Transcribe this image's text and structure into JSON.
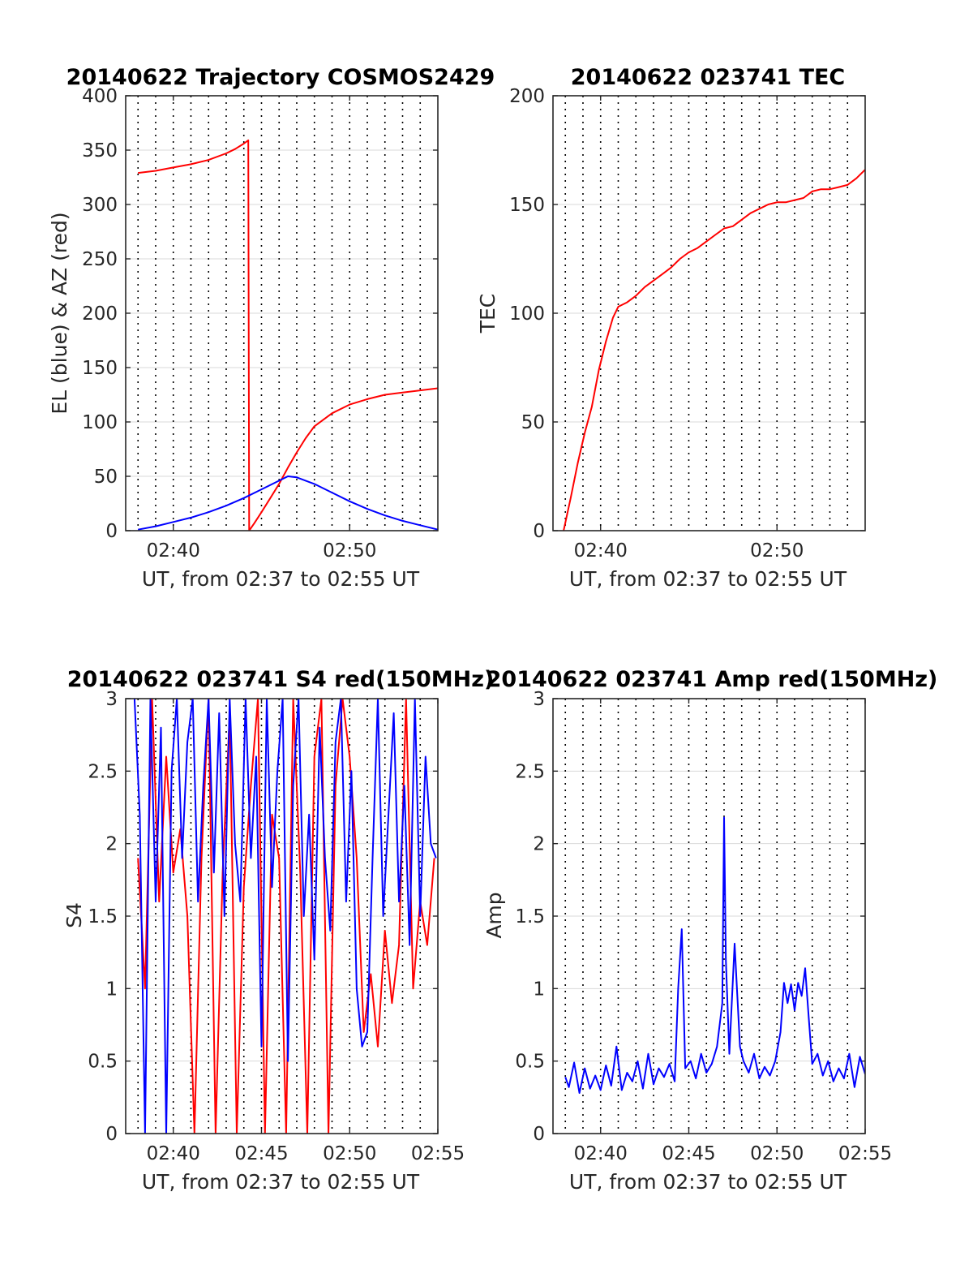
{
  "colors": {
    "red": "#ff0000",
    "blue": "#0000ff"
  },
  "chart_data": [
    {
      "id": "trajectory",
      "type": "line",
      "title": "20140622 Trajectory COSMOS2429",
      "xlabel": "UT, from 02:37 to 02:55 UT",
      "ylabel": "EL (blue) & AZ (red)",
      "xlim": [
        37.3,
        55
      ],
      "ylim": [
        0,
        400
      ],
      "yticks": [
        0,
        50,
        100,
        150,
        200,
        250,
        300,
        350,
        400
      ],
      "ytick_labels": [
        "0",
        "50",
        "100",
        "150",
        "200",
        "250",
        "300",
        "350",
        "400"
      ],
      "xticks": [
        40,
        50
      ],
      "xtick_labels": [
        "02:40",
        "02:50"
      ],
      "vgrid_x": [
        38,
        39,
        40,
        41,
        42,
        43,
        44,
        45,
        46,
        47,
        48,
        49,
        50,
        51,
        52,
        53,
        54
      ],
      "grid": true,
      "series": [
        {
          "color": "red",
          "x": [
            38,
            39,
            40,
            41,
            42,
            43,
            43.5,
            44,
            44.25,
            44.3,
            44.6,
            45,
            45.5,
            46,
            46.5,
            47,
            47.5,
            48,
            49,
            50,
            51,
            52,
            53,
            54,
            55
          ],
          "y": [
            329,
            331,
            334,
            337,
            341,
            347,
            351,
            356,
            359,
            0,
            7,
            17,
            30,
            43,
            58,
            72,
            85,
            96,
            108,
            116,
            121,
            125,
            127,
            129,
            131
          ]
        },
        {
          "color": "blue",
          "x": [
            38,
            39,
            40,
            41,
            42,
            43,
            44,
            45,
            46,
            46.5,
            47,
            48,
            49,
            50,
            51,
            52,
            53,
            54,
            55
          ],
          "y": [
            1,
            4,
            8,
            12,
            17,
            23,
            30,
            38,
            46,
            50,
            49,
            43,
            35,
            27,
            20,
            14,
            9,
            5,
            1
          ]
        }
      ]
    },
    {
      "id": "tec",
      "type": "line",
      "title": "20140622 023741 TEC",
      "xlabel": "UT, from 02:37 to 02:55 UT",
      "ylabel": "TEC",
      "xlim": [
        37.3,
        55
      ],
      "ylim": [
        0,
        200
      ],
      "yticks": [
        0,
        50,
        100,
        150,
        200
      ],
      "ytick_labels": [
        "0",
        "50",
        "100",
        "150",
        "200"
      ],
      "xticks": [
        40,
        50
      ],
      "xtick_labels": [
        "02:40",
        "02:50"
      ],
      "vgrid_x": [
        38,
        39,
        40,
        41,
        42,
        43,
        44,
        45,
        46,
        47,
        48,
        49,
        50,
        51,
        52,
        53,
        54
      ],
      "grid": true,
      "series": [
        {
          "color": "red",
          "x": [
            37.9,
            38.3,
            38.7,
            39.1,
            39.5,
            39.9,
            40.3,
            40.7,
            41.0,
            41.5,
            42,
            42.5,
            43,
            43.5,
            44,
            44.5,
            45,
            45.5,
            46,
            46.5,
            47,
            47.5,
            48,
            48.5,
            49,
            49.5,
            50,
            50.5,
            51,
            51.5,
            52,
            52.5,
            53,
            53.5,
            54,
            54.5,
            55
          ],
          "y": [
            0,
            15,
            31,
            45,
            57,
            74,
            87,
            98,
            103,
            105,
            108,
            112,
            115,
            118,
            121,
            125,
            128,
            130,
            133,
            136,
            139,
            140,
            143,
            146,
            148,
            150,
            151,
            151,
            152,
            153,
            156,
            157,
            157,
            158,
            159,
            162,
            166
          ]
        }
      ]
    },
    {
      "id": "s4",
      "type": "line",
      "title": "20140622 023741 S4 red(150MHz)",
      "xlabel": "UT, from 02:37 to 02:55 UT",
      "ylabel": "S4",
      "xlim": [
        37.3,
        55
      ],
      "ylim": [
        0,
        3
      ],
      "yticks": [
        0,
        0.5,
        1,
        1.5,
        2,
        2.5,
        3
      ],
      "ytick_labels": [
        "0",
        "0.5",
        "1",
        "1.5",
        "2",
        "2.5",
        "3"
      ],
      "xticks": [
        40,
        45,
        50,
        55
      ],
      "xtick_labels": [
        "02:40",
        "02:45",
        "02:50",
        "02:55"
      ],
      "vgrid_x": [
        38,
        39,
        40,
        41,
        42,
        43,
        44,
        45,
        46,
        47,
        48,
        49,
        50,
        51,
        52,
        53,
        54
      ],
      "grid": true,
      "series": [
        {
          "color": "red",
          "x": [
            38.0,
            38.4,
            38.8,
            39.2,
            39.6,
            40.0,
            40.4,
            40.8,
            41.2,
            41.6,
            42.0,
            42.4,
            42.8,
            43.2,
            43.6,
            44.0,
            44.4,
            44.8,
            45.2,
            45.6,
            46.0,
            46.4,
            46.8,
            47.2,
            47.6,
            48.0,
            48.4,
            48.8,
            49.2,
            49.6,
            50.0,
            50.4,
            50.8,
            51.2,
            51.6,
            52.0,
            52.4,
            52.8,
            53.2,
            53.6,
            54.0,
            54.4,
            54.8
          ],
          "y": [
            1.9,
            1.0,
            3.0,
            1.6,
            2.6,
            1.8,
            2.1,
            1.5,
            0,
            1.9,
            3.0,
            0,
            1.8,
            2.9,
            0,
            1.7,
            2.4,
            3.0,
            0,
            2.2,
            1.9,
            0,
            3.0,
            1.8,
            0,
            2.6,
            3.0,
            0,
            2.4,
            3.0,
            2.6,
            1.9,
            0.7,
            1.1,
            0.6,
            1.4,
            0.9,
            1.3,
            3.0,
            1.0,
            1.6,
            1.3,
            1.9
          ]
        },
        {
          "color": "blue",
          "x": [
            37.8,
            38.1,
            38.4,
            38.7,
            39.0,
            39.3,
            39.6,
            39.9,
            40.2,
            40.5,
            40.8,
            41.1,
            41.4,
            41.7,
            42.0,
            42.3,
            42.6,
            42.9,
            43.2,
            43.5,
            43.8,
            44.1,
            44.4,
            44.7,
            45.0,
            45.3,
            45.6,
            45.9,
            46.2,
            46.5,
            46.8,
            47.1,
            47.4,
            47.7,
            48.0,
            48.3,
            48.6,
            48.9,
            49.2,
            49.5,
            49.8,
            50.1,
            50.4,
            50.7,
            51.0,
            51.3,
            51.6,
            51.9,
            52.2,
            52.5,
            52.8,
            53.1,
            53.4,
            53.7,
            54.0,
            54.3,
            54.6,
            54.9
          ],
          "y": [
            3.0,
            2.2,
            0,
            3.0,
            1.6,
            2.8,
            0,
            2.5,
            3.0,
            1.9,
            2.7,
            3.0,
            1.6,
            2.4,
            3.0,
            1.8,
            2.9,
            1.5,
            3.0,
            2.0,
            1.6,
            3.0,
            1.9,
            2.6,
            0.6,
            3.0,
            1.7,
            2.5,
            3.0,
            0.5,
            2.4,
            3.0,
            1.5,
            2.2,
            1.2,
            2.8,
            1.9,
            1.4,
            2.7,
            3.0,
            1.6,
            2.5,
            1.0,
            0.6,
            0.7,
            1.9,
            3.0,
            1.5,
            2.2,
            2.9,
            1.6,
            2.4,
            1.3,
            3.0,
            1.5,
            2.6,
            2.0,
            1.9
          ]
        }
      ]
    },
    {
      "id": "amp",
      "type": "line",
      "title": "20140622 023741 Amp red(150MHz)",
      "xlabel": "UT, from 02:37 to 02:55 UT",
      "ylabel": "Amp",
      "xlim": [
        37.3,
        55
      ],
      "ylim": [
        0,
        3
      ],
      "yticks": [
        0,
        0.5,
        1,
        1.5,
        2,
        2.5,
        3
      ],
      "ytick_labels": [
        "0",
        "0.5",
        "1",
        "1.5",
        "2",
        "2.5",
        "3"
      ],
      "xticks": [
        40,
        45,
        50,
        55
      ],
      "xtick_labels": [
        "02:40",
        "02:45",
        "02:50",
        "02:55"
      ],
      "vgrid_x": [
        38,
        39,
        40,
        41,
        42,
        43,
        44,
        45,
        46,
        47,
        48,
        49,
        50,
        51,
        52,
        53,
        54
      ],
      "grid": true,
      "series": [
        {
          "color": "blue",
          "x": [
            38.0,
            38.2,
            38.5,
            38.8,
            39.1,
            39.4,
            39.7,
            40.0,
            40.3,
            40.6,
            40.9,
            41.2,
            41.5,
            41.8,
            42.1,
            42.4,
            42.7,
            43.0,
            43.3,
            43.6,
            43.9,
            44.2,
            44.4,
            44.6,
            44.8,
            45.1,
            45.4,
            45.7,
            46.0,
            46.3,
            46.6,
            46.9,
            47.0,
            47.1,
            47.3,
            47.6,
            47.9,
            48.1,
            48.4,
            48.7,
            49.0,
            49.3,
            49.6,
            49.9,
            50.2,
            50.4,
            50.6,
            50.8,
            51.0,
            51.2,
            51.4,
            51.6,
            51.8,
            52.0,
            52.3,
            52.6,
            52.9,
            53.2,
            53.5,
            53.8,
            54.1,
            54.4,
            54.7,
            55.0
          ],
          "y": [
            0.39,
            0.32,
            0.49,
            0.28,
            0.45,
            0.31,
            0.4,
            0.3,
            0.47,
            0.33,
            0.6,
            0.3,
            0.42,
            0.36,
            0.5,
            0.31,
            0.55,
            0.34,
            0.45,
            0.39,
            0.48,
            0.36,
            1.0,
            1.41,
            0.45,
            0.5,
            0.38,
            0.55,
            0.42,
            0.48,
            0.6,
            0.9,
            2.18,
            1.2,
            0.55,
            1.31,
            0.6,
            0.5,
            0.42,
            0.55,
            0.38,
            0.46,
            0.4,
            0.5,
            0.7,
            1.04,
            0.9,
            1.03,
            0.85,
            1.04,
            0.95,
            1.14,
            0.8,
            0.48,
            0.55,
            0.4,
            0.5,
            0.36,
            0.45,
            0.38,
            0.55,
            0.32,
            0.53,
            0.41
          ]
        }
      ]
    }
  ]
}
